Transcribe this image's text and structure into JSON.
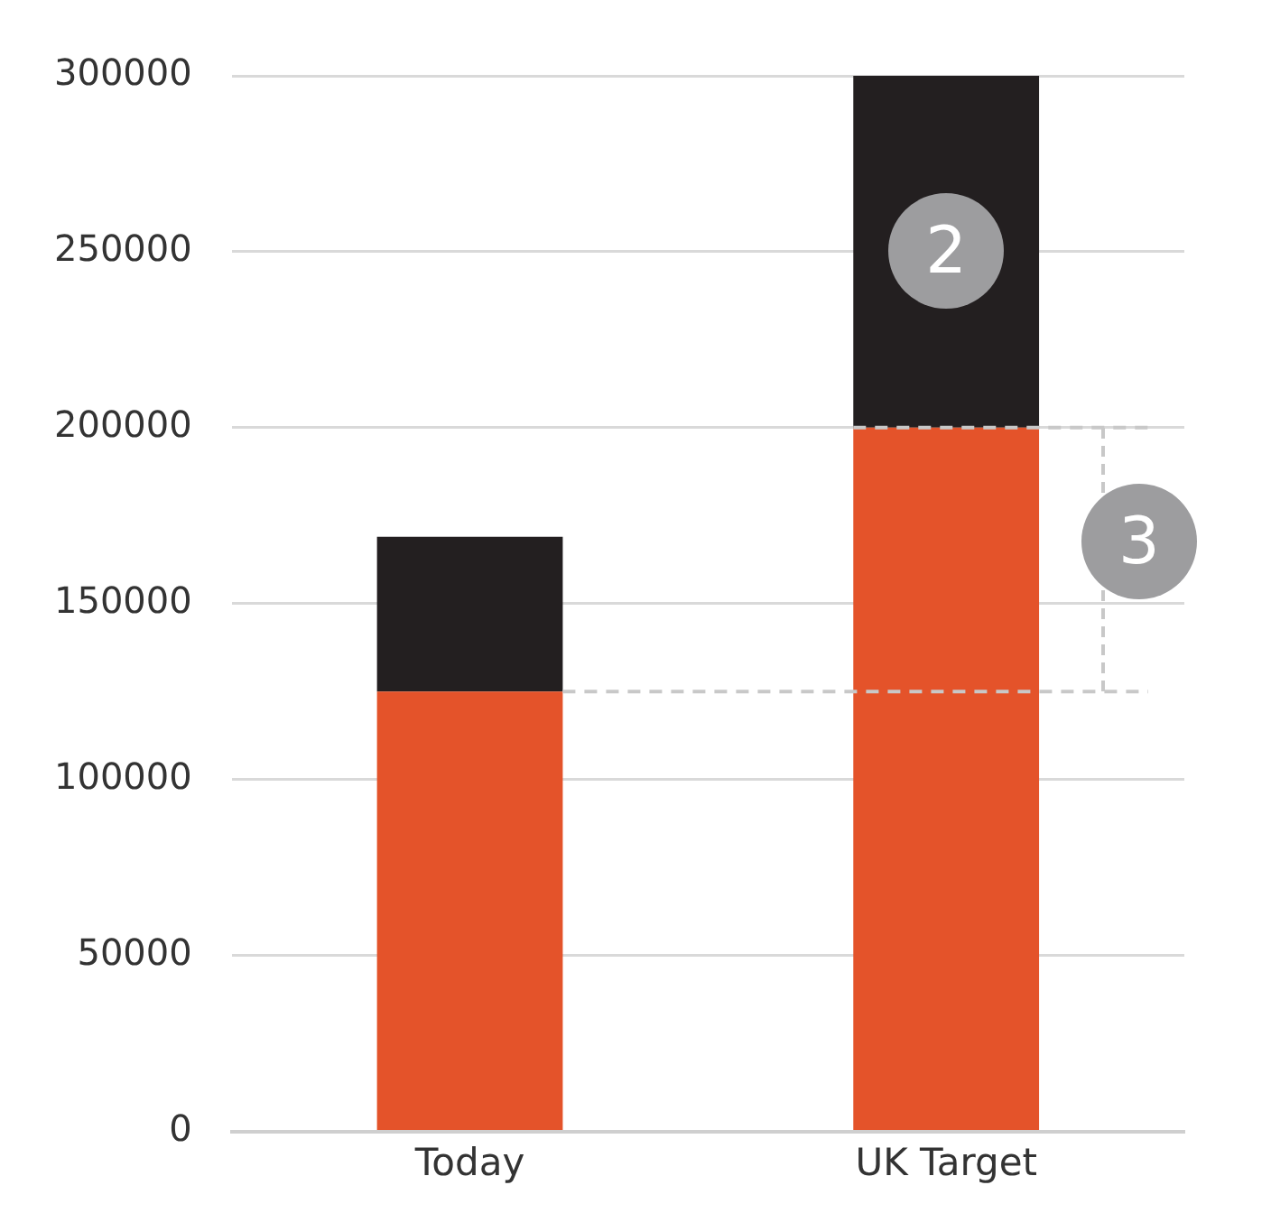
{
  "chart_data": {
    "type": "bar",
    "stacked": true,
    "categories": [
      "Today",
      "UK Target"
    ],
    "series": [
      {
        "color": "#e4532a",
        "values": [
          125000,
          200000
        ]
      },
      {
        "color": "#231f20",
        "values": [
          44000,
          100000
        ]
      }
    ],
    "ylim": [
      0,
      300000
    ],
    "yticks": [
      0,
      50000,
      100000,
      150000,
      200000,
      250000,
      300000
    ],
    "grid": "y",
    "legend": false,
    "ref_lines": [
      {
        "axis": "y",
        "value": 125000,
        "color": "#c8c8c8",
        "line_style": "dashed"
      },
      {
        "axis": "y",
        "value": 200000,
        "color": "#c8c8c8",
        "line_style": "dashed"
      }
    ],
    "annotations": [
      "2",
      {
        "text": "3",
        "y": 200000
      }
    ]
  }
}
